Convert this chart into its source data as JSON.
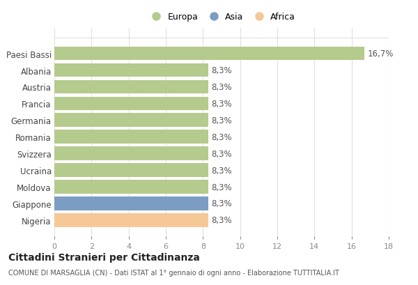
{
  "countries": [
    "Nigeria",
    "Giappone",
    "Moldova",
    "Ucraina",
    "Svizzera",
    "Romania",
    "Germania",
    "Francia",
    "Austria",
    "Albania",
    "Paesi Bassi"
  ],
  "values": [
    8.3,
    8.3,
    8.3,
    8.3,
    8.3,
    8.3,
    8.3,
    8.3,
    8.3,
    8.3,
    16.7
  ],
  "colors": [
    "#f5c896",
    "#7b9dc4",
    "#b5ca8d",
    "#b5ca8d",
    "#b5ca8d",
    "#b5ca8d",
    "#b5ca8d",
    "#b5ca8d",
    "#b5ca8d",
    "#b5ca8d",
    "#b5ca8d"
  ],
  "labels": [
    "8,3%",
    "8,3%",
    "8,3%",
    "8,3%",
    "8,3%",
    "8,3%",
    "8,3%",
    "8,3%",
    "8,3%",
    "8,3%",
    "16,7%"
  ],
  "xlim": [
    0,
    18
  ],
  "xticks": [
    0,
    2,
    4,
    6,
    8,
    10,
    12,
    14,
    16,
    18
  ],
  "legend_labels": [
    "Europa",
    "Asia",
    "Africa"
  ],
  "legend_colors": [
    "#b5ca8d",
    "#7b9dc4",
    "#f5c896"
  ],
  "title": "Cittadini Stranieri per Cittadinanza",
  "subtitle": "COMUNE DI MARSAGLIA (CN) - Dati ISTAT al 1° gennaio di ogni anno - Elaborazione TUTTITALIA.IT",
  "bg_color": "#ffffff",
  "grid_color": "#e0e0e0",
  "bar_height": 0.82
}
